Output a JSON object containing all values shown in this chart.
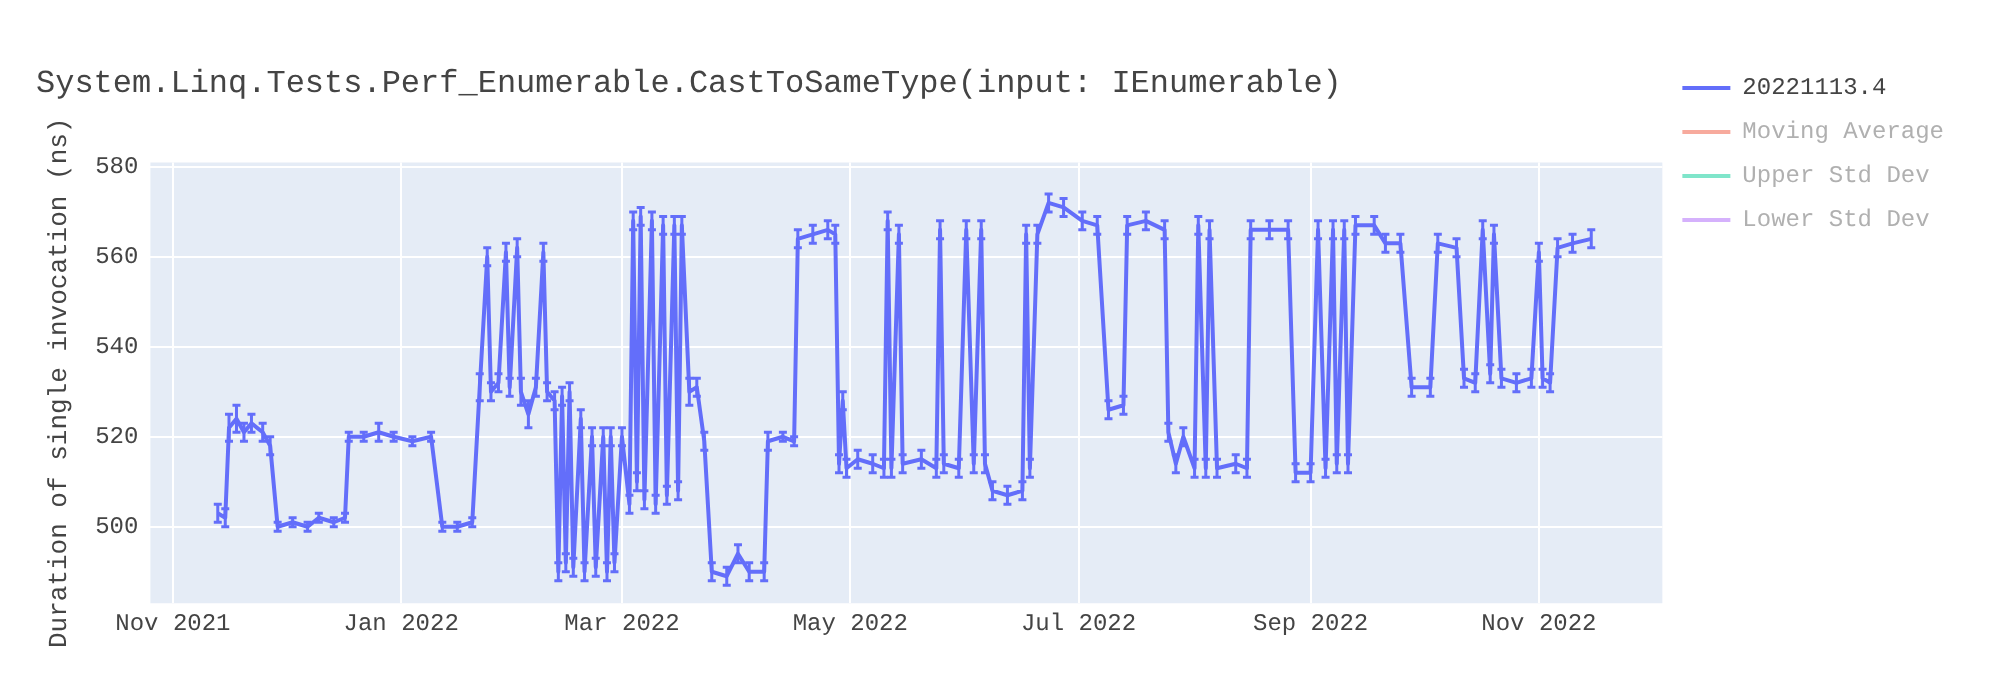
{
  "chart_data": {
    "type": "line",
    "title": "System.Linq.Tests.Perf_Enumerable.CastToSameType(input: IEnumerable)",
    "ylabel": "Duration of single invocation (ns)",
    "xlim": [
      "2021-10-26",
      "2022-12-04"
    ],
    "xticks": [
      {
        "value": "2021-11-01",
        "label": "Nov 2021"
      },
      {
        "value": "2022-01-01",
        "label": "Jan 2022"
      },
      {
        "value": "2022-03-01",
        "label": "Mar 2022"
      },
      {
        "value": "2022-05-01",
        "label": "May 2022"
      },
      {
        "value": "2022-07-01",
        "label": "Jul 2022"
      },
      {
        "value": "2022-09-01",
        "label": "Sep 2022"
      },
      {
        "value": "2022-11-01",
        "label": "Nov 2022"
      }
    ],
    "ylim": [
      483,
      581
    ],
    "yticks": [
      500,
      520,
      540,
      560,
      580
    ],
    "grid": true,
    "legend": "top right",
    "series": [
      {
        "name": "20221113.4",
        "color": "#636efa",
        "x": [
          "2021-11-13",
          "2021-11-15",
          "2021-11-16",
          "2021-11-18",
          "2021-11-20",
          "2021-11-22",
          "2021-11-25",
          "2021-11-27",
          "2021-11-29",
          "2021-12-03",
          "2021-12-07",
          "2021-12-10",
          "2021-12-14",
          "2021-12-17",
          "2021-12-18",
          "2021-12-22",
          "2021-12-26",
          "2021-12-30",
          "2022-01-04",
          "2022-01-09",
          "2022-01-12",
          "2022-01-16",
          "2022-01-20",
          "2022-01-22",
          "2022-01-24",
          "2022-01-25",
          "2022-01-27",
          "2022-01-29",
          "2022-01-30",
          "2022-02-01",
          "2022-02-02",
          "2022-02-04",
          "2022-02-06",
          "2022-02-08",
          "2022-02-09",
          "2022-02-11",
          "2022-02-12",
          "2022-02-13",
          "2022-02-14",
          "2022-02-15",
          "2022-02-16",
          "2022-02-18",
          "2022-02-19",
          "2022-02-21",
          "2022-02-22",
          "2022-02-24",
          "2022-02-25",
          "2022-02-26",
          "2022-02-27",
          "2022-03-01",
          "2022-03-03",
          "2022-03-04",
          "2022-03-05",
          "2022-03-06",
          "2022-03-07",
          "2022-03-09",
          "2022-03-10",
          "2022-03-12",
          "2022-03-13",
          "2022-03-15",
          "2022-03-16",
          "2022-03-17",
          "2022-03-19",
          "2022-03-21",
          "2022-03-23",
          "2022-03-25",
          "2022-03-29",
          "2022-04-01",
          "2022-04-04",
          "2022-04-08",
          "2022-04-09",
          "2022-04-13",
          "2022-04-16",
          "2022-04-17",
          "2022-04-21",
          "2022-04-25",
          "2022-04-27",
          "2022-04-28",
          "2022-04-29",
          "2022-04-30",
          "2022-05-03",
          "2022-05-07",
          "2022-05-10",
          "2022-05-11",
          "2022-05-12",
          "2022-05-14",
          "2022-05-15",
          "2022-05-20",
          "2022-05-24",
          "2022-05-25",
          "2022-05-26",
          "2022-05-30",
          "2022-06-01",
          "2022-06-03",
          "2022-06-05",
          "2022-06-06",
          "2022-06-08",
          "2022-06-12",
          "2022-06-16",
          "2022-06-17",
          "2022-06-18",
          "2022-06-20",
          "2022-06-23",
          "2022-06-27",
          "2022-07-02",
          "2022-07-06",
          "2022-07-09",
          "2022-07-13",
          "2022-07-14",
          "2022-07-19",
          "2022-07-24",
          "2022-07-25",
          "2022-07-27",
          "2022-07-29",
          "2022-08-01",
          "2022-08-02",
          "2022-08-04",
          "2022-08-05",
          "2022-08-07",
          "2022-08-12",
          "2022-08-15",
          "2022-08-16",
          "2022-08-21",
          "2022-08-26",
          "2022-08-28",
          "2022-09-01",
          "2022-09-03",
          "2022-09-05",
          "2022-09-07",
          "2022-09-08",
          "2022-09-10",
          "2022-09-11",
          "2022-09-13",
          "2022-09-18",
          "2022-09-21",
          "2022-09-25",
          "2022-09-28",
          "2022-10-03",
          "2022-10-05",
          "2022-10-10",
          "2022-10-12",
          "2022-10-15",
          "2022-10-17",
          "2022-10-19",
          "2022-10-20",
          "2022-10-22",
          "2022-10-26",
          "2022-10-30",
          "2022-11-01",
          "2022-11-02",
          "2022-11-04",
          "2022-11-06",
          "2022-11-10",
          "2022-11-15"
        ],
        "values": [
          503,
          502,
          522,
          524,
          521,
          523,
          521,
          518,
          500,
          501,
          500,
          502,
          501,
          502,
          520,
          520,
          521,
          520,
          519,
          520,
          500,
          500,
          501,
          531,
          560,
          530,
          532,
          561,
          531,
          562,
          530,
          525,
          531,
          561,
          530,
          528,
          490,
          529,
          492,
          530,
          491,
          524,
          490,
          520,
          491,
          520,
          490,
          520,
          492,
          520,
          505,
          568,
          510,
          569,
          506,
          568,
          505,
          567,
          507,
          567,
          508,
          567,
          530,
          531,
          519,
          490,
          489,
          494,
          490,
          490,
          519,
          520,
          519,
          564,
          565,
          566,
          565,
          514,
          528,
          513,
          515,
          514,
          513,
          568,
          513,
          565,
          514,
          515,
          513,
          566,
          514,
          513,
          566,
          514,
          566,
          514,
          508,
          507,
          508,
          565,
          513,
          565,
          572,
          571,
          568,
          567,
          526,
          527,
          567,
          568,
          566,
          521,
          514,
          520,
          513,
          567,
          513,
          566,
          513,
          514,
          513,
          566,
          566,
          566,
          512,
          512,
          566,
          513,
          566,
          514,
          566,
          514,
          567,
          567,
          563,
          563,
          531,
          531,
          563,
          562,
          533,
          532,
          566,
          534,
          565,
          533,
          532,
          533,
          561,
          533,
          532,
          562,
          563,
          564
        ],
        "errors": [
          2,
          2,
          3,
          3,
          2,
          2,
          2,
          2,
          1,
          1,
          1,
          1,
          1,
          1,
          1,
          1,
          2,
          1,
          1,
          1,
          1,
          1,
          1,
          3,
          2,
          2,
          2,
          2,
          2,
          2,
          3,
          3,
          2,
          2,
          2,
          2,
          2,
          2,
          2,
          2,
          2,
          2,
          2,
          2,
          2,
          2,
          2,
          2,
          2,
          2,
          2,
          2,
          2,
          2,
          2,
          2,
          2,
          2,
          2,
          2,
          2,
          2,
          3,
          2,
          2,
          2,
          2,
          2,
          2,
          2,
          2,
          1,
          1,
          2,
          2,
          2,
          2,
          2,
          2,
          2,
          2,
          2,
          2,
          2,
          2,
          2,
          2,
          2,
          2,
          2,
          2,
          2,
          2,
          2,
          2,
          2,
          2,
          2,
          2,
          2,
          2,
          2,
          2,
          2,
          2,
          2,
          2,
          2,
          2,
          2,
          2,
          2,
          2,
          2,
          2,
          2,
          2,
          2,
          2,
          2,
          2,
          2,
          2,
          2,
          2,
          2,
          2,
          2,
          2,
          2,
          2,
          2,
          2,
          2,
          2,
          2,
          2,
          2,
          2,
          2,
          2,
          2,
          2,
          2,
          2,
          2,
          2,
          2,
          2,
          2,
          2,
          2,
          2,
          2
        ]
      },
      {
        "name": "Moving Average",
        "color": "#ef553b"
      },
      {
        "name": "Upper Std Dev",
        "color": "#00cc96"
      },
      {
        "name": "Lower Std Dev",
        "color": "#ab63fa"
      }
    ]
  }
}
